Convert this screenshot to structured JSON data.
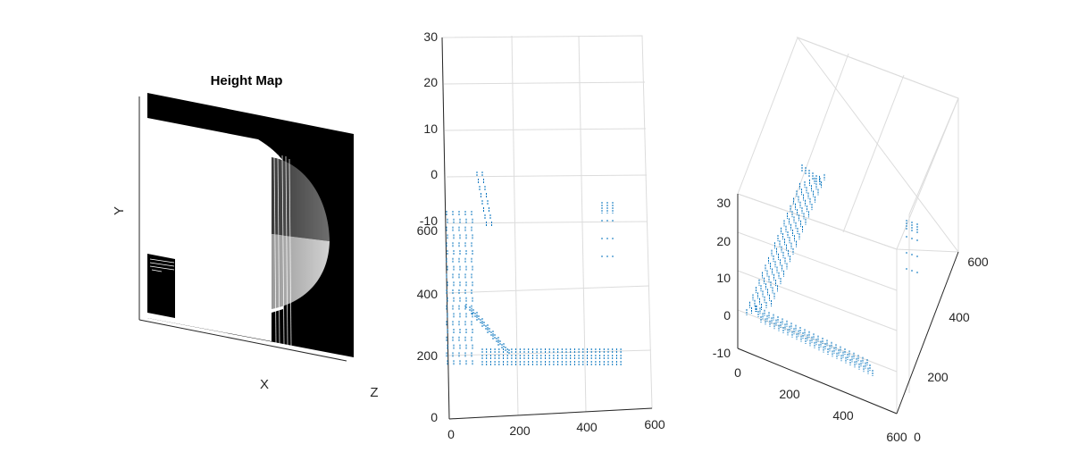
{
  "chart_data": [
    {
      "type": "heatmap",
      "title": "Height Map",
      "xlabel": "X",
      "ylabel": "Y",
      "zlabel": "Z",
      "colormap": "gray"
    },
    {
      "type": "scatter",
      "title": "",
      "x_ticks": [
        "0",
        "200",
        "400",
        "600"
      ],
      "y_ticks": [
        "0",
        "200",
        "400",
        "600"
      ],
      "z_ticks": [
        "-10",
        "0",
        "10",
        "20",
        "30"
      ],
      "xlim": [
        0,
        600
      ],
      "ylim": [
        0,
        600
      ],
      "zlim": [
        -10,
        30
      ],
      "grid": true,
      "marker_color": "#0072BD"
    },
    {
      "type": "scatter",
      "title": "",
      "x_ticks": [
        "0",
        "200",
        "400",
        "600"
      ],
      "y_ticks": [
        "0",
        "200",
        "400",
        "600"
      ],
      "z_ticks": [
        "-10",
        "0",
        "10",
        "20",
        "30"
      ],
      "xlim": [
        0,
        600
      ],
      "ylim": [
        0,
        600
      ],
      "zlim": [
        -10,
        30
      ],
      "grid": true,
      "marker_color": "#0072BD"
    }
  ]
}
